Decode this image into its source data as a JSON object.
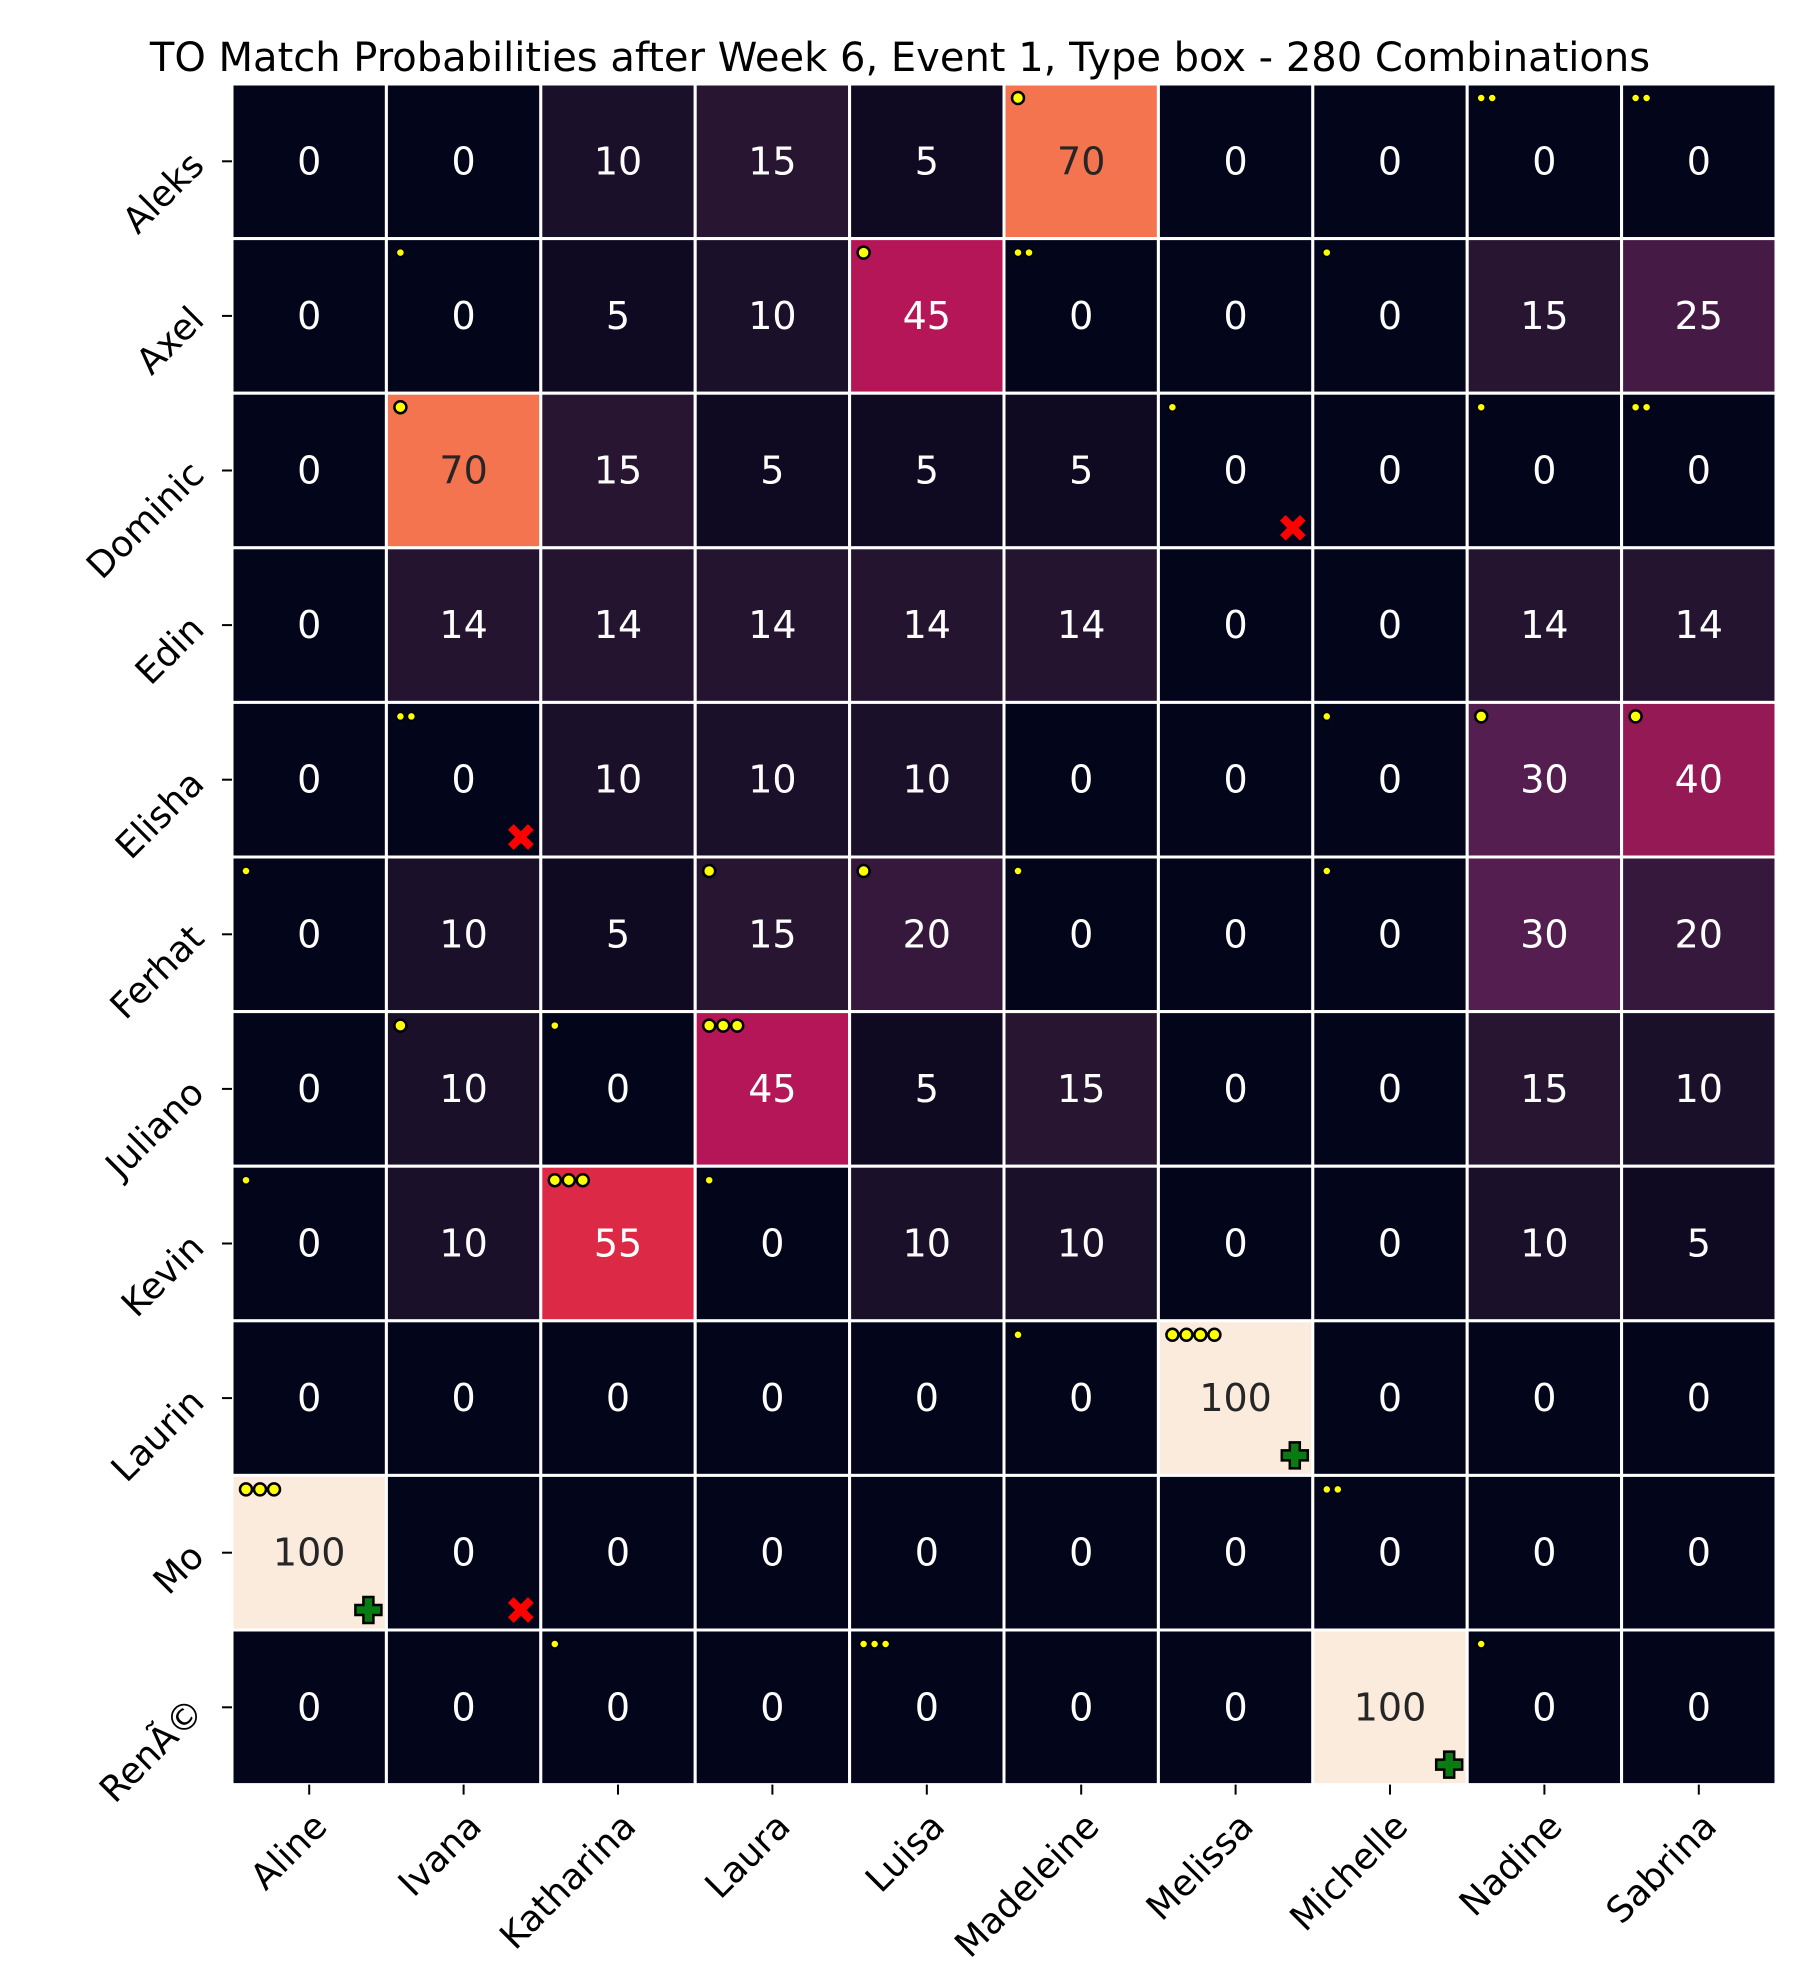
{
  "chart_data": {
    "type": "heatmap",
    "title": "TO Match Probabilities after Week 6, Event 1,  Type box - 280 Combinations",
    "xlabel": "",
    "ylabel": "",
    "x_categories": [
      "Aline",
      "Ivana",
      "Katharina",
      "Laura",
      "Luisa",
      "Madeleine",
      "Melissa",
      "Michelle",
      "Nadine",
      "Sabrina"
    ],
    "y_categories": [
      "Aleks",
      "Axel",
      "Dominic",
      "Edin",
      "Elisha",
      "Ferhat",
      "Juliano",
      "Kevin",
      "Laurin",
      "Mo",
      "RenÃ©"
    ],
    "values": [
      [
        0,
        0,
        10,
        15,
        5,
        70,
        0,
        0,
        0,
        0
      ],
      [
        0,
        0,
        5,
        10,
        45,
        0,
        0,
        0,
        15,
        25
      ],
      [
        0,
        70,
        15,
        5,
        5,
        5,
        0,
        0,
        0,
        0
      ],
      [
        0,
        14,
        14,
        14,
        14,
        14,
        0,
        0,
        14,
        14
      ],
      [
        0,
        0,
        10,
        10,
        10,
        0,
        0,
        0,
        30,
        40
      ],
      [
        0,
        10,
        5,
        15,
        20,
        0,
        0,
        0,
        30,
        20
      ],
      [
        0,
        10,
        0,
        45,
        5,
        15,
        0,
        0,
        15,
        10
      ],
      [
        0,
        10,
        55,
        0,
        10,
        10,
        0,
        0,
        10,
        5
      ],
      [
        0,
        0,
        0,
        0,
        0,
        0,
        100,
        0,
        0,
        0
      ],
      [
        100,
        0,
        0,
        0,
        0,
        0,
        0,
        0,
        0,
        0
      ],
      [
        0,
        0,
        0,
        0,
        0,
        0,
        0,
        100,
        0,
        0
      ]
    ],
    "value_range": [
      0,
      100
    ],
    "colormap": "rocket",
    "grid": false,
    "legend": "none",
    "perfect_match_marks": [
      [
        8,
        6
      ],
      [
        9,
        0
      ],
      [
        10,
        7
      ]
    ],
    "no_match_marks": [
      [
        2,
        6
      ],
      [
        4,
        1
      ],
      [
        9,
        1
      ]
    ],
    "dot_markers": [
      {
        "row": 0,
        "col": 5,
        "count": 1,
        "size": "large"
      },
      {
        "row": 0,
        "col": 8,
        "count": 2,
        "size": "small"
      },
      {
        "row": 0,
        "col": 9,
        "count": 2,
        "size": "small"
      },
      {
        "row": 1,
        "col": 1,
        "count": 1,
        "size": "small"
      },
      {
        "row": 1,
        "col": 4,
        "count": 1,
        "size": "large"
      },
      {
        "row": 1,
        "col": 5,
        "count": 2,
        "size": "small"
      },
      {
        "row": 1,
        "col": 7,
        "count": 1,
        "size": "small"
      },
      {
        "row": 2,
        "col": 1,
        "count": 1,
        "size": "large"
      },
      {
        "row": 2,
        "col": 6,
        "count": 1,
        "size": "small"
      },
      {
        "row": 2,
        "col": 8,
        "count": 1,
        "size": "small"
      },
      {
        "row": 2,
        "col": 9,
        "count": 2,
        "size": "small"
      },
      {
        "row": 4,
        "col": 1,
        "count": 2,
        "size": "small"
      },
      {
        "row": 4,
        "col": 7,
        "count": 1,
        "size": "small"
      },
      {
        "row": 4,
        "col": 8,
        "count": 1,
        "size": "large"
      },
      {
        "row": 4,
        "col": 9,
        "count": 1,
        "size": "large"
      },
      {
        "row": 5,
        "col": 0,
        "count": 1,
        "size": "small"
      },
      {
        "row": 5,
        "col": 3,
        "count": 1,
        "size": "large"
      },
      {
        "row": 5,
        "col": 4,
        "count": 1,
        "size": "large"
      },
      {
        "row": 5,
        "col": 5,
        "count": 1,
        "size": "small"
      },
      {
        "row": 5,
        "col": 7,
        "count": 1,
        "size": "small"
      },
      {
        "row": 6,
        "col": 1,
        "count": 1,
        "size": "large"
      },
      {
        "row": 6,
        "col": 2,
        "count": 1,
        "size": "small"
      },
      {
        "row": 6,
        "col": 3,
        "count": 3,
        "size": "large"
      },
      {
        "row": 7,
        "col": 0,
        "count": 1,
        "size": "small"
      },
      {
        "row": 7,
        "col": 2,
        "count": 3,
        "size": "large"
      },
      {
        "row": 7,
        "col": 3,
        "count": 1,
        "size": "small"
      },
      {
        "row": 8,
        "col": 5,
        "count": 1,
        "size": "small"
      },
      {
        "row": 8,
        "col": 6,
        "count": 4,
        "size": "large"
      },
      {
        "row": 9,
        "col": 0,
        "count": 3,
        "size": "large"
      },
      {
        "row": 9,
        "col": 7,
        "count": 2,
        "size": "small"
      },
      {
        "row": 10,
        "col": 2,
        "count": 1,
        "size": "small"
      },
      {
        "row": 10,
        "col": 4,
        "count": 3,
        "size": "small"
      },
      {
        "row": 10,
        "col": 8,
        "count": 1,
        "size": "small"
      }
    ]
  }
}
